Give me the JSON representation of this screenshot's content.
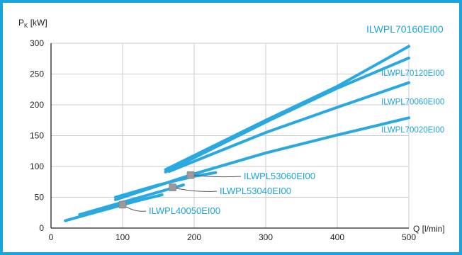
{
  "chart_data": {
    "type": "line",
    "xlabel": "Q [l/min]",
    "ylabel_main": "P",
    "ylabel_sub": "K",
    "ylabel_unit": " [kW]",
    "xlim": [
      0,
      500
    ],
    "ylim": [
      0,
      300
    ],
    "x_ticks": [
      0,
      100,
      200,
      300,
      400,
      500
    ],
    "y_ticks": [
      0,
      50,
      100,
      150,
      200,
      250,
      300
    ],
    "grid": true,
    "colors": {
      "line": "#2aa8e0",
      "label": "#1aa5dc",
      "marker": "#9a9a9a",
      "grid": "#cccccc",
      "leader": "#555555",
      "frame": "#1aa5dc"
    },
    "series": [
      {
        "name": "ILWPL70160EI00",
        "points": [
          [
            160,
            95
          ],
          [
            300,
            175
          ],
          [
            400,
            230
          ],
          [
            500,
            295
          ]
        ]
      },
      {
        "name": "ILWPL70120EI00",
        "points": [
          [
            160,
            91
          ],
          [
            300,
            172
          ],
          [
            400,
            227
          ],
          [
            500,
            276
          ]
        ]
      },
      {
        "name": "ILWPL70060EI00",
        "points": [
          [
            165,
            92
          ],
          [
            300,
            155
          ],
          [
            400,
            196
          ],
          [
            500,
            236
          ]
        ]
      },
      {
        "name": "ILWPL70020EI00",
        "points": [
          [
            90,
            46
          ],
          [
            200,
            88
          ],
          [
            300,
            122
          ],
          [
            400,
            151
          ],
          [
            500,
            179
          ]
        ]
      },
      {
        "name": "ILWPL53060EI00",
        "points": [
          [
            90,
            50
          ],
          [
            150,
            70
          ],
          [
            200,
            84
          ],
          [
            230,
            90
          ]
        ],
        "marker": [
          195,
          86
        ]
      },
      {
        "name": "ILWPL53040EI00",
        "points": [
          [
            40,
            22
          ],
          [
            100,
            42
          ],
          [
            170,
            65
          ],
          [
            185,
            70
          ]
        ],
        "marker": [
          170,
          66
        ]
      },
      {
        "name": "ILWPL40050EI00",
        "points": [
          [
            20,
            12
          ],
          [
            60,
            25
          ],
          [
            120,
            44
          ],
          [
            155,
            54
          ]
        ],
        "marker": [
          100,
          38
        ]
      }
    ]
  }
}
